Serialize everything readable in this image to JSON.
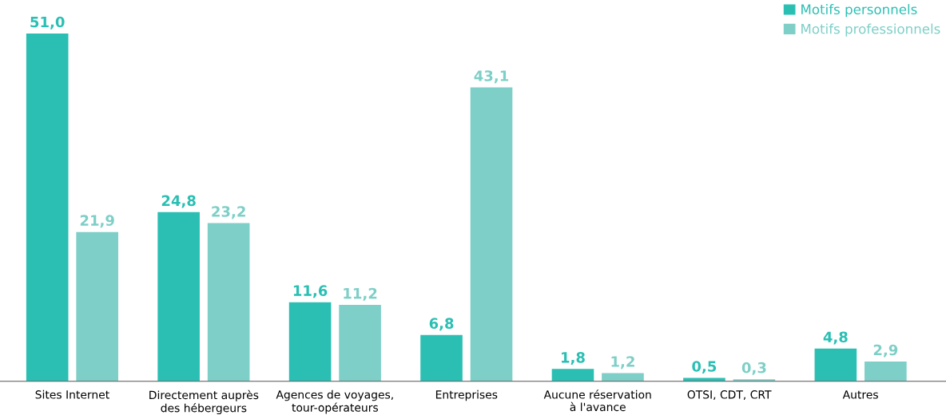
{
  "chart_data": {
    "type": "bar",
    "categories": [
      "Sites Internet",
      "Directement auprès\ndes hébergeurs",
      "Agences de voyages,\ntour-opérateurs",
      "Entreprises",
      "Aucune réservation\nà l'avance",
      "OTSI, CDT, CRT",
      "Autres"
    ],
    "series": [
      {
        "name": "Motifs personnels",
        "color": "#2bbfb3",
        "values": [
          51.0,
          24.8,
          11.6,
          6.8,
          1.8,
          0.5,
          4.8
        ],
        "value_labels": [
          "51,0",
          "24,8",
          "11,6",
          "6,8",
          "1,8",
          "0,5",
          "4,8"
        ]
      },
      {
        "name": "Motifs professionnels",
        "color": "#7ecfc7",
        "values": [
          21.9,
          23.2,
          11.2,
          43.1,
          1.2,
          0.3,
          2.9
        ],
        "value_labels": [
          "21,9",
          "23,2",
          "11,2",
          "43,1",
          "1,2",
          "0,3",
          "2,9"
        ]
      }
    ],
    "ylim": [
      0,
      51.0
    ],
    "tick_labels": "x",
    "grid": false,
    "legend": "top right"
  }
}
